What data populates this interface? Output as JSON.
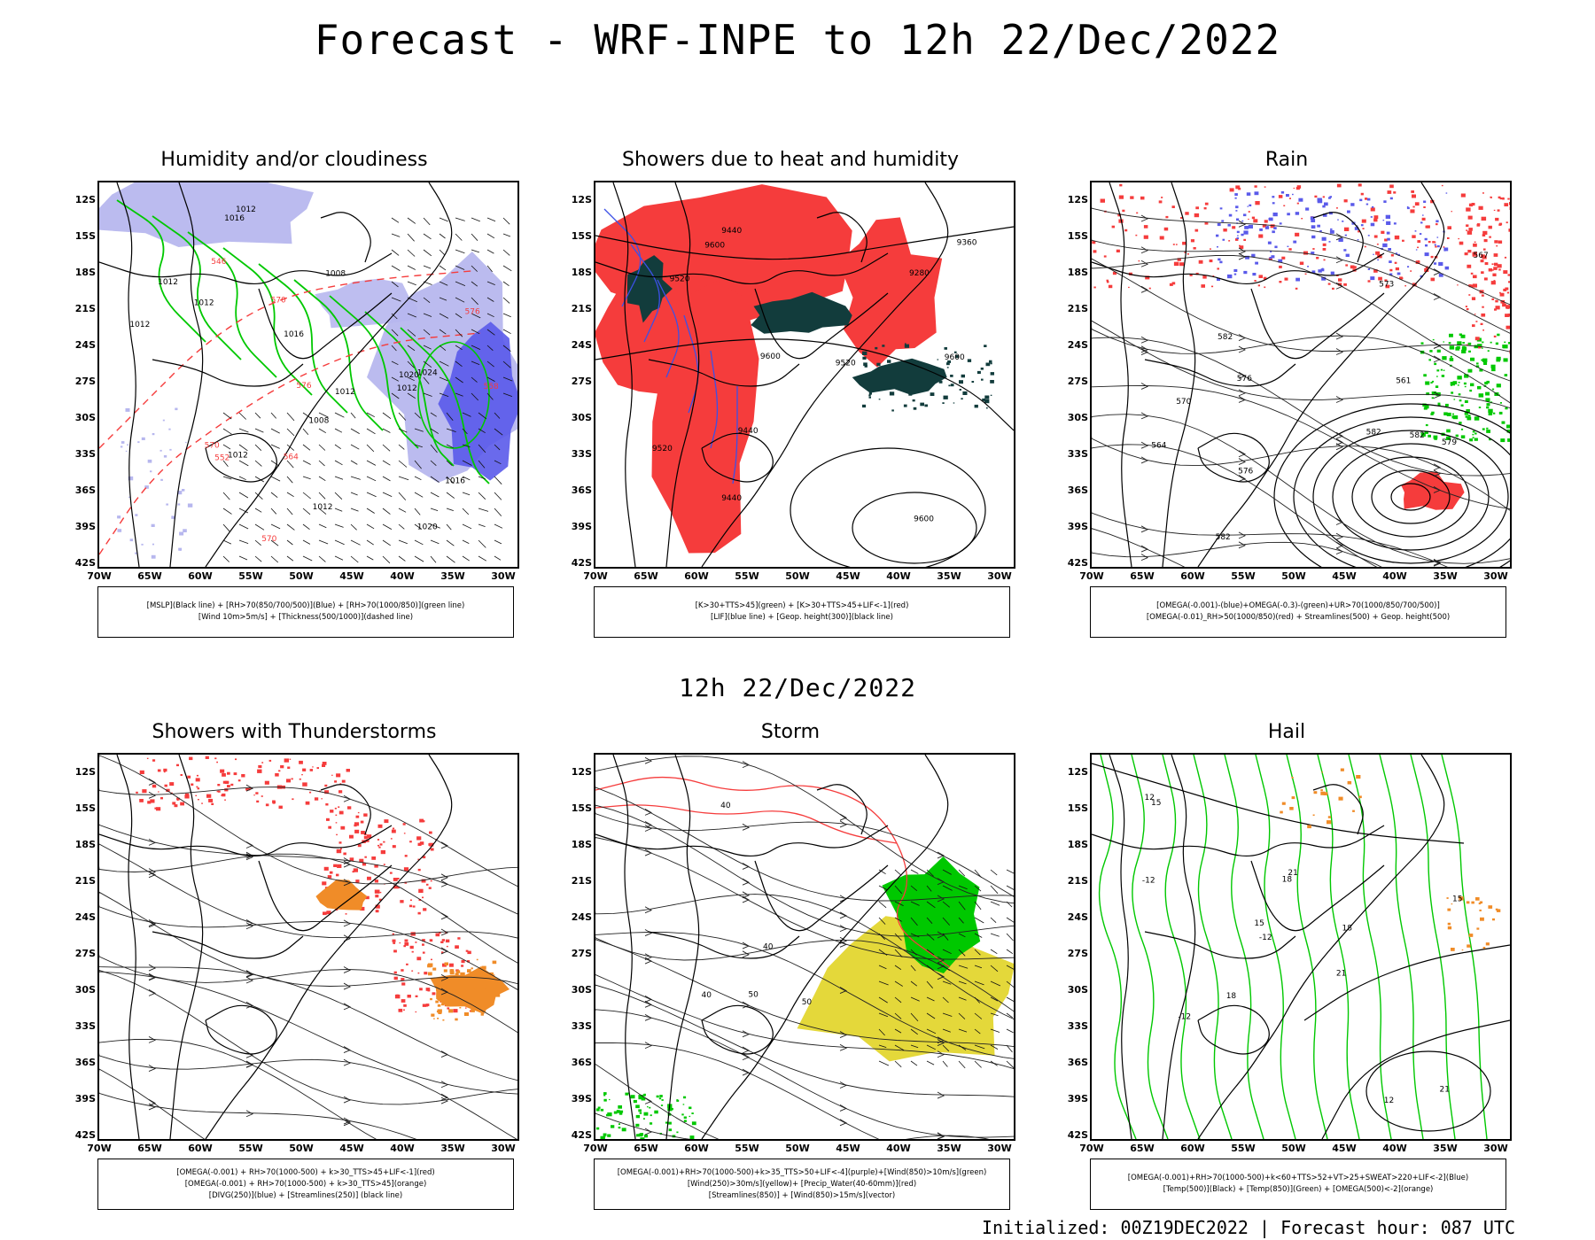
{
  "main_title": "Forecast - WRF-INPE to 12h 22/Dec/2022",
  "mid_title": "12h 22/Dec/2022",
  "footer": "Initialized: 00Z19DEC2022 | Forecast hour: 087 UTC",
  "axes": {
    "lat_labels": [
      "12S",
      "15S",
      "18S",
      "21S",
      "24S",
      "27S",
      "30S",
      "33S",
      "36S",
      "39S",
      "42S"
    ],
    "lon_labels": [
      "70W",
      "65W",
      "60W",
      "55W",
      "50W",
      "45W",
      "40W",
      "35W",
      "30W"
    ],
    "lat_range": [
      -42,
      -10
    ],
    "lon_range": [
      -70,
      -28
    ]
  },
  "colors": {
    "rh_blue": "#b7b7ee",
    "rh_dark_blue": "#5a5aea",
    "green_line": "#00c800",
    "red": "#f53c3c",
    "dark_teal": "#123c3c",
    "orange": "#f08c28",
    "yellow": "#e4d83a",
    "purple": "#a000c8"
  },
  "panels": [
    {
      "title": "Humidity and/or cloudiness",
      "legend": [
        "[MSLP](Black line) + [RH>70(850/700/500)](Blue) + [RH>70(1000/850)](green line)",
        "[Wind 10m>5m/s] + [Thickness(500/1000)](dashed line)"
      ],
      "labels": [
        "1012",
        "1012",
        "1016",
        "1016",
        "1012",
        "1008",
        "1012",
        "1012",
        "1016",
        "1012",
        "1012",
        "1020",
        "1020",
        "1024",
        "1008",
        "1012",
        "570",
        "576",
        "570",
        "564",
        "558",
        "552",
        "546",
        "570",
        "576"
      ]
    },
    {
      "title": "Showers due to heat and humidity",
      "legend": [
        "[K>30+TTS>45](green) + [K>30+TTS>45+LIF<-1](red)",
        "[LIF](blue line) + [Geop. height(300)](black line)"
      ],
      "labels": [
        "9600",
        "9600",
        "9600",
        "9600",
        "9520",
        "9520",
        "9520",
        "9440",
        "9440",
        "9360",
        "9280",
        "9440"
      ]
    },
    {
      "title": "Rain",
      "legend": [
        "[OMEGA(-0.001)-(blue)+OMEGA(-0.3)-(green)+UR>70(1000/850/700/500)]",
        "[OMEGA(-0.01)_RH>50(1000/850)(red) + Streamlines(500) + Geop. height(500)"
      ],
      "labels": [
        "582",
        "582",
        "576",
        "576",
        "579",
        "573",
        "570",
        "567",
        "561",
        "564",
        "582",
        "582"
      ]
    },
    {
      "title": "Showers with Thunderstorms",
      "legend": [
        "[OMEGA(-0.001) + RH>70(1000-500) + k>30_TTS>45+LIF<-1](red)",
        "[OMEGA(-0.001) + RH>70(1000-500) + k>30_TTS>45](orange)",
        "[DIVG(250)](blue) + [Streamlines(250)] (black line)"
      ],
      "labels": []
    },
    {
      "title": "Storm",
      "legend": [
        "[OMEGA(-0.001)+RH>70(1000-500)+k>35_TTS>50+LIF<-4](purple)+[Wind(850)>10m/s](green)",
        "[Wind(250)>30m/s](yellow)+ [Precip_Water(40-60mm)](red)",
        "[Streamlines(850)] + [Wind(850)>15m/s](vector)"
      ],
      "labels": [
        "50",
        "40",
        "40",
        "40",
        "50"
      ]
    },
    {
      "title": "Hail",
      "legend": [
        "[OMEGA(-0.001)+RH>70(1000-500)+k<60+TTS>52+VT>25+SWEAT>220+LIF<-2](Blue)",
        "[Temp(500)](Black) + [Temp(850)](Green) + [OMEGA(500)<-2](orange)"
      ],
      "labels": [
        "-12",
        "-12",
        "-12",
        "15",
        "18",
        "21",
        "21",
        "12",
        "15",
        "18",
        "12",
        "15",
        "18",
        "21"
      ]
    }
  ]
}
